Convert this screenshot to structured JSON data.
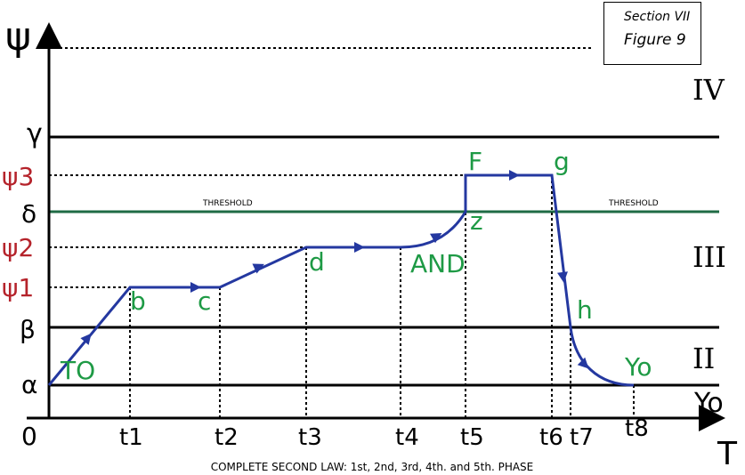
{
  "reference_box": {
    "line1": "Section VII",
    "line2": "Figure 9"
  },
  "axes": {
    "y_symbol": "ψ",
    "x_symbol": "T",
    "origin": "0"
  },
  "y_levels": {
    "gamma": "γ",
    "psi3": "ψ3",
    "delta": "δ",
    "psi2": "ψ2",
    "psi1": "ψ1",
    "beta": "β",
    "alpha": "α"
  },
  "zones": {
    "IV": "IV",
    "III": "III",
    "II": "II",
    "yo": "Yo"
  },
  "threshold": {
    "left": "THRESHOLD",
    "right": "THRESHOLD"
  },
  "time_ticks": [
    "t1",
    "t2",
    "t3",
    "t4",
    "t5",
    "t6",
    "t7",
    "t8"
  ],
  "points": {
    "TO": "TO",
    "b": "b",
    "c": "c",
    "d": "d",
    "AND": "AND",
    "z": "z",
    "F": "F",
    "g": "g",
    "h": "h",
    "Yo": "Yo"
  },
  "caption": "COMPLETE SECOND LAW: 1st, 2nd, 3rd, 4th. and 5th. PHASE",
  "colors": {
    "curve": "#2438a0",
    "threshold_line": "#1f6b45",
    "red_labels": "#b5232b",
    "green_labels": "#1e9a45"
  }
}
